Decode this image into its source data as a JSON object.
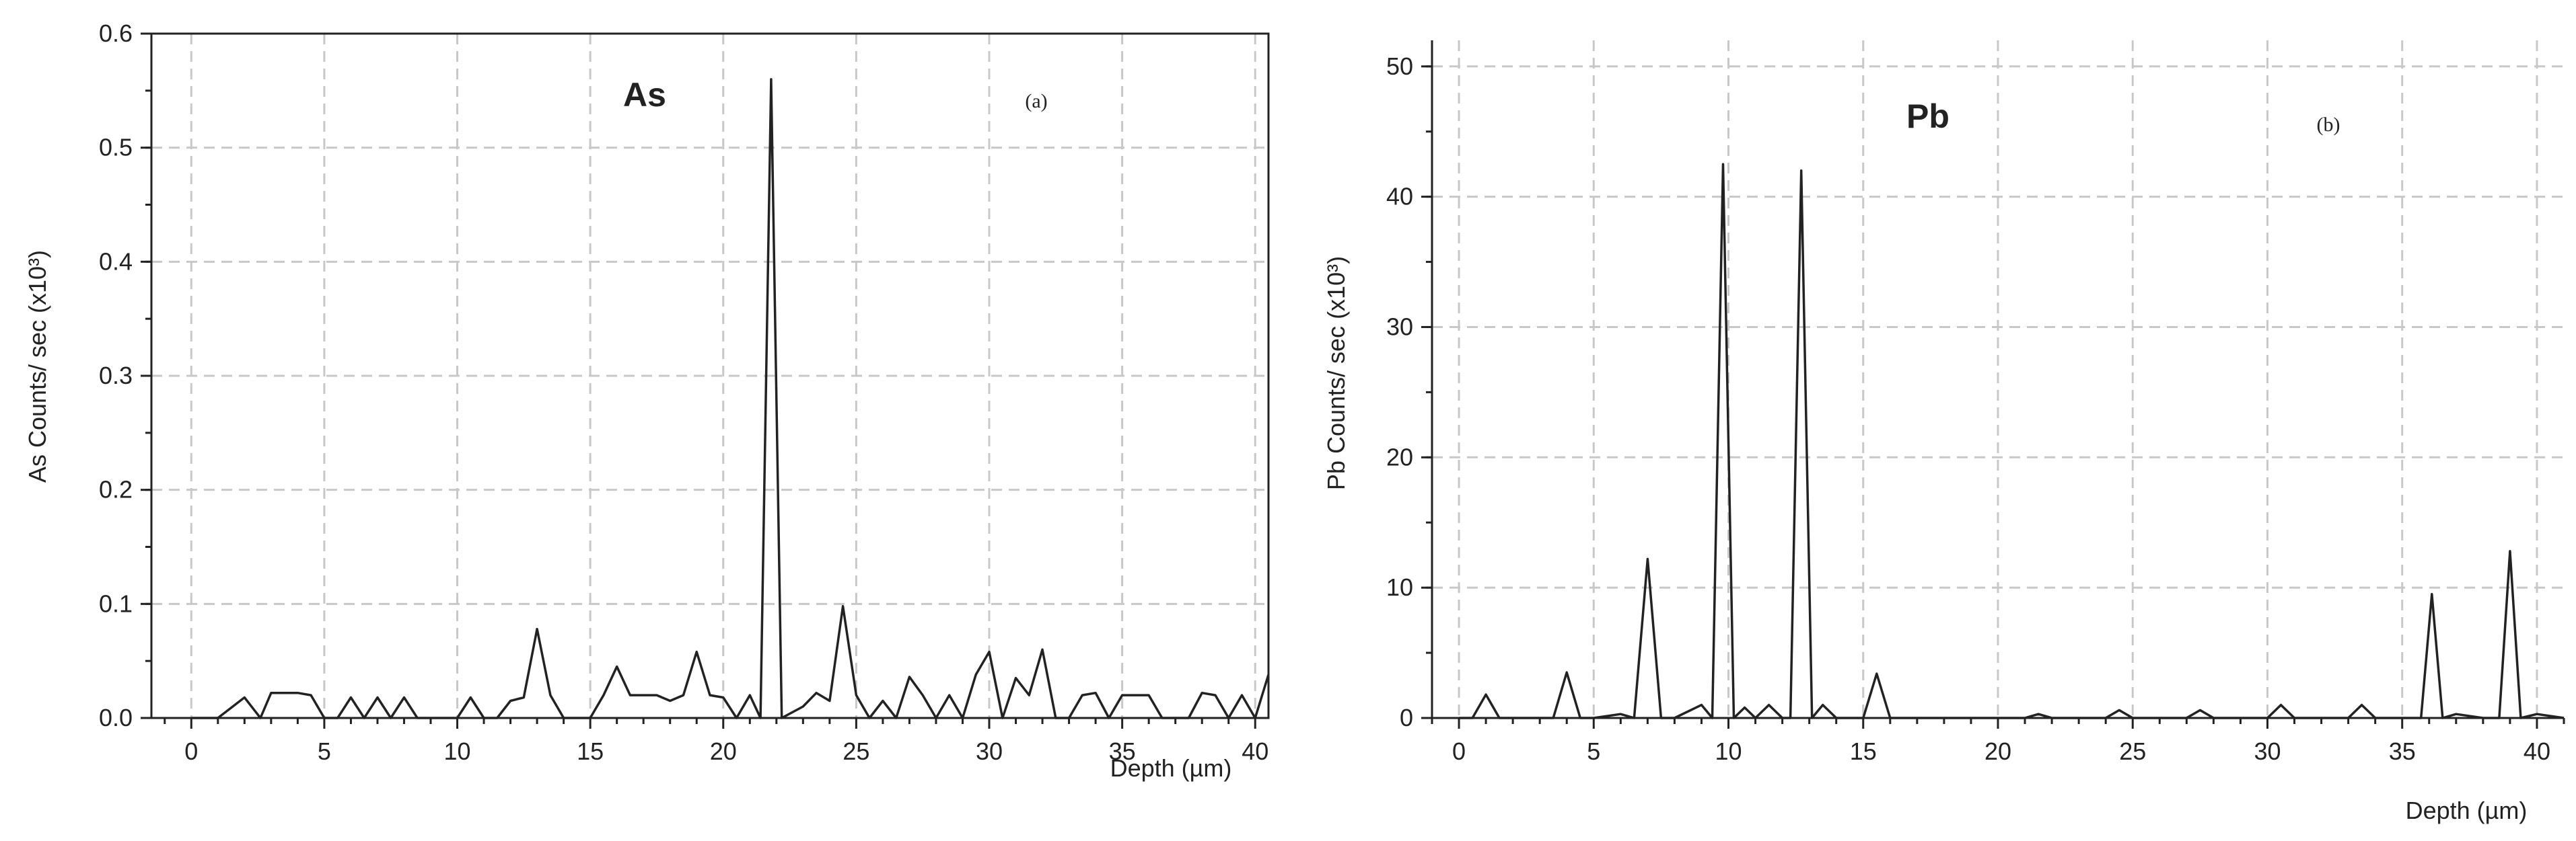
{
  "chart_data": [
    {
      "type": "line",
      "panel": "(a)",
      "element": "As",
      "ylabel": "As Counts/ sec (x10³)",
      "xlabel": "Depth (µm)",
      "xlim": [
        -1.5,
        40.5
      ],
      "ylim": [
        0,
        0.6
      ],
      "xticks": [
        "0",
        "5",
        "10",
        "15",
        "20",
        "25",
        "30",
        "35",
        "40"
      ],
      "yticks": [
        "0.0",
        "0.1",
        "0.2",
        "0.3",
        "0.4",
        "0.5",
        "0.6"
      ],
      "grid": true,
      "x": [
        0,
        1,
        2,
        2.6,
        3,
        3.5,
        4,
        4.5,
        5,
        5.5,
        6,
        6.5,
        7,
        7.5,
        8,
        8.5,
        9,
        9.5,
        10,
        10.5,
        11,
        11.5,
        12,
        12.5,
        13,
        13.5,
        14,
        14.5,
        15,
        15.5,
        16,
        16.5,
        17,
        17.5,
        18,
        18.5,
        19,
        19.5,
        20,
        20.5,
        21,
        21.4,
        21.8,
        22.2,
        22.6,
        23,
        23.5,
        24,
        24.5,
        25,
        25.5,
        26,
        26.5,
        27,
        27.5,
        28,
        28.5,
        29,
        29.5,
        30,
        30.5,
        31,
        31.5,
        32,
        32.5,
        33,
        33.5,
        34,
        34.5,
        35,
        35.5,
        36,
        36.5,
        37,
        37.5,
        38,
        38.5,
        39,
        39.5,
        40,
        40.5
      ],
      "y": [
        0,
        0,
        0.018,
        0,
        0.022,
        0.022,
        0.022,
        0.02,
        0,
        0,
        0.018,
        0,
        0.018,
        0,
        0.018,
        0,
        0,
        0,
        0,
        0.018,
        0,
        0,
        0.015,
        0.018,
        0.078,
        0.02,
        0,
        0,
        0,
        0.02,
        0.045,
        0.02,
        0.02,
        0.02,
        0.015,
        0.02,
        0.058,
        0.02,
        0.018,
        0,
        0.02,
        0,
        0.56,
        0,
        0.005,
        0.01,
        0.022,
        0.015,
        0.098,
        0.02,
        0,
        0.015,
        0,
        0.036,
        0.02,
        0,
        0.02,
        0,
        0.038,
        0.058,
        0,
        0.035,
        0.02,
        0.06,
        0,
        0,
        0.02,
        0.022,
        0,
        0.02,
        0.02,
        0.02,
        0,
        0,
        0,
        0.022,
        0.02,
        0,
        0.02,
        0,
        0.038
      ]
    },
    {
      "type": "line",
      "panel": "(b)",
      "element": "Pb",
      "ylabel": "Pb Counts/ sec (x10³)",
      "xlabel": "Depth (µm)",
      "xlim": [
        -1,
        41
      ],
      "ylim": [
        0,
        52
      ],
      "xticks": [
        "0",
        "5",
        "10",
        "15",
        "20",
        "25",
        "30",
        "35",
        "40"
      ],
      "yticks": [
        "0",
        "10",
        "20",
        "30",
        "40",
        "50"
      ],
      "grid": true,
      "x": [
        0,
        0.5,
        1,
        1.5,
        2,
        3,
        3.5,
        4,
        4.5,
        5,
        6,
        6.5,
        7,
        7.5,
        8,
        9,
        9.4,
        9.8,
        10.2,
        10.6,
        11,
        11.5,
        12,
        12.3,
        12.7,
        13.1,
        13.5,
        14,
        14.5,
        15,
        15.5,
        16,
        16.5,
        17,
        18,
        19,
        20,
        21,
        21.5,
        22,
        23,
        24,
        24.5,
        25,
        26,
        27,
        27.5,
        28,
        29,
        30,
        30.5,
        31,
        32,
        33,
        33.5,
        34,
        35,
        35.7,
        36.1,
        36.5,
        37,
        38,
        38.6,
        39,
        39.4,
        40,
        41
      ],
      "y": [
        0,
        0,
        1.8,
        0,
        0,
        0,
        0,
        3.5,
        0,
        0,
        0.3,
        0,
        12.2,
        0,
        0,
        1,
        0,
        42.5,
        0,
        0.8,
        0,
        1,
        0,
        0,
        42,
        0,
        1,
        0,
        0,
        0,
        3.4,
        0,
        0,
        0,
        0,
        0,
        0,
        0,
        0.3,
        0,
        0,
        0,
        0.6,
        0,
        0,
        0,
        0.6,
        0,
        0,
        0,
        1,
        0,
        0,
        0,
        1,
        0,
        0,
        0,
        9.5,
        0,
        0.3,
        0,
        0,
        12.8,
        0,
        0.3,
        0
      ]
    }
  ]
}
